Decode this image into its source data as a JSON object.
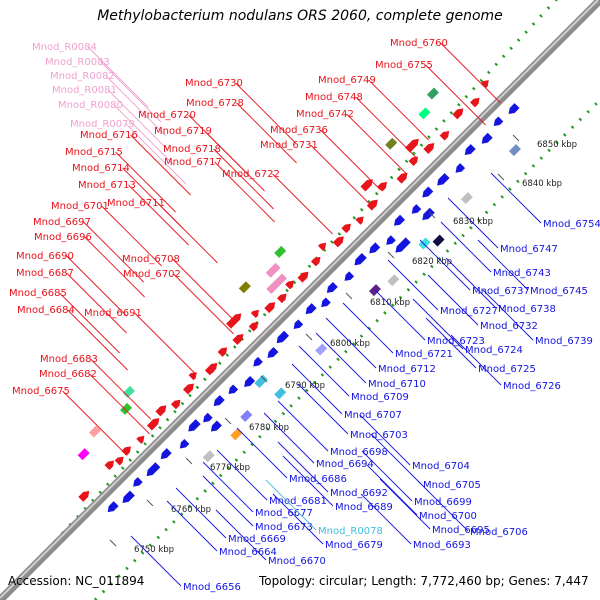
{
  "title": "Methylobacterium nodulans ORS 2060, complete genome",
  "footer": {
    "accession": "Accession: NC_011894",
    "summary": "Topology: circular; Length: 7,772,460 bp; Genes: 7,447"
  },
  "colors": {
    "forward_gene": "#e8141c",
    "reverse_gene": "#1414e0",
    "rna_gene": "#f090c0",
    "rna_gene_reverse": "#40c0e0",
    "backbone": "#8c8c8c",
    "gc_dots": "#1e9a1e"
  },
  "ticks": [
    "6750 kbp",
    "6760 kbp",
    "6770 kbp",
    "6780 kbp",
    "6790 kbp",
    "6800 kbp",
    "6810 kbp",
    "6820 kbp",
    "6830 kbp",
    "6840 kbp",
    "6850 kbp"
  ],
  "forward_labels": [
    "Mnod_R0084",
    "Mnod_R0083",
    "Mnod_R0082",
    "Mnod_R0081",
    "Mnod_R0080",
    "Mnod_R0079",
    "Mnod_6760",
    "Mnod_6755",
    "Mnod_6749",
    "Mnod_6748",
    "Mnod_6742",
    "Mnod_6736",
    "Mnod_6731",
    "Mnod_6730",
    "Mnod_6728",
    "Mnod_6720",
    "Mnod_6719",
    "Mnod_6718",
    "Mnod_6717",
    "Mnod_6722",
    "Mnod_6716",
    "Mnod_6715",
    "Mnod_6714",
    "Mnod_6713",
    "Mnod_6711",
    "Mnod_6701",
    "Mnod_6697",
    "Mnod_6696",
    "Mnod_6690",
    "Mnod_6708",
    "Mnod_6702",
    "Mnod_6687",
    "Mnod_6685",
    "Mnod_6684",
    "Mnod_6691",
    "Mnod_6683",
    "Mnod_6682",
    "Mnod_6675"
  ],
  "reverse_labels": [
    "Mnod_6754",
    "Mnod_6747",
    "Mnod_6743",
    "Mnod_6745",
    "Mnod_6737",
    "Mnod_6738",
    "Mnod_6727",
    "Mnod_6732",
    "Mnod_6739",
    "Mnod_6723",
    "Mnod_6724",
    "Mnod_6721",
    "Mnod_6725",
    "Mnod_6712",
    "Mnod_6726",
    "Mnod_6710",
    "Mnod_6709",
    "Mnod_6707",
    "Mnod_6703",
    "Mnod_6698",
    "Mnod_6694",
    "Mnod_6704",
    "Mnod_6705",
    "Mnod_6686",
    "Mnod_6692",
    "Mnod_6699",
    "Mnod_6681",
    "Mnod_6689",
    "Mnod_6700",
    "Mnod_6677",
    "Mnod_6673",
    "Mnod_R0078",
    "Mnod_6695",
    "Mnod_6706",
    "Mnod_6669",
    "Mnod_6679",
    "Mnod_6693",
    "Mnod_6664",
    "Mnod_6670",
    "Mnod_6656"
  ]
}
